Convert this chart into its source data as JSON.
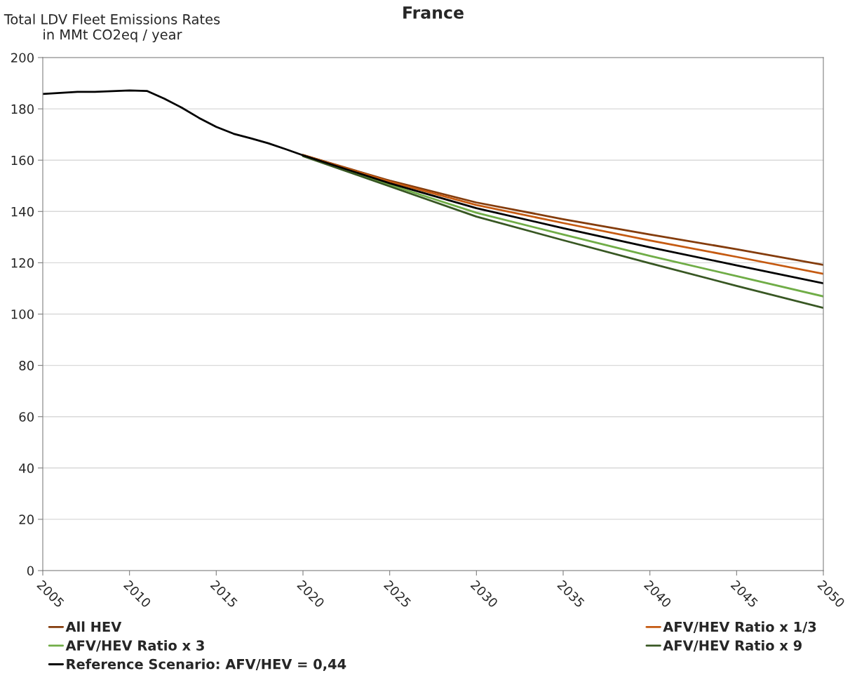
{
  "chart_data": {
    "type": "line",
    "title": "France",
    "ylabel": "Total LDV Fleet Emissions Rates\nin MMt CO2eq / year",
    "xlim": [
      2005,
      2050
    ],
    "xticks": [
      2005,
      2010,
      2015,
      2020,
      2025,
      2030,
      2035,
      2040,
      2045,
      2050
    ],
    "ylim": [
      0,
      200
    ],
    "yticks": [
      0,
      20,
      40,
      60,
      80,
      100,
      120,
      140,
      160,
      180,
      200
    ],
    "grid": "y",
    "legend": "bottom",
    "marker": "none",
    "line_style": "solid",
    "series": [
      {
        "name": "All HEV",
        "color": "#843c0c",
        "x": [
          2020,
          2025,
          2030,
          2035,
          2040,
          2045,
          2050
        ],
        "values": [
          162,
          152,
          143.5,
          137,
          131,
          125.3,
          119.2
        ]
      },
      {
        "name": "AFV/HEV Ratio x 1/3",
        "color": "#c55a11",
        "x": [
          2020,
          2025,
          2030,
          2035,
          2040,
          2045,
          2050
        ],
        "values": [
          162,
          151.6,
          142.5,
          135.5,
          128.7,
          122.3,
          115.7
        ]
      },
      {
        "name": "AFV/HEV Ratio x 3",
        "color": "#70ad47",
        "x": [
          2020,
          2025,
          2030,
          2035,
          2040,
          2045,
          2050
        ],
        "values": [
          161.8,
          150.4,
          139.5,
          131,
          122.7,
          114.8,
          106.9
        ]
      },
      {
        "name": "AFV/HEV Ratio x 9",
        "color": "#385723",
        "x": [
          2020,
          2025,
          2030,
          2035,
          2040,
          2045,
          2050
        ],
        "values": [
          161.6,
          149.8,
          138,
          128.8,
          119.8,
          111,
          102.4
        ]
      },
      {
        "name": "Reference Scenario: AFV/HEV = 0,44",
        "color": "#000000",
        "x": [
          2005,
          2007,
          2008,
          2010,
          2011,
          2012,
          2013,
          2014,
          2015,
          2016,
          2017,
          2018,
          2019,
          2020,
          2025,
          2030,
          2035,
          2040,
          2045,
          2050
        ],
        "values": [
          185.8,
          186.6,
          186.6,
          187.2,
          187,
          184,
          180.5,
          176.5,
          173,
          170.3,
          168.5,
          166.6,
          164.3,
          161.9,
          151,
          141.3,
          133.5,
          126,
          119,
          112
        ]
      }
    ]
  }
}
